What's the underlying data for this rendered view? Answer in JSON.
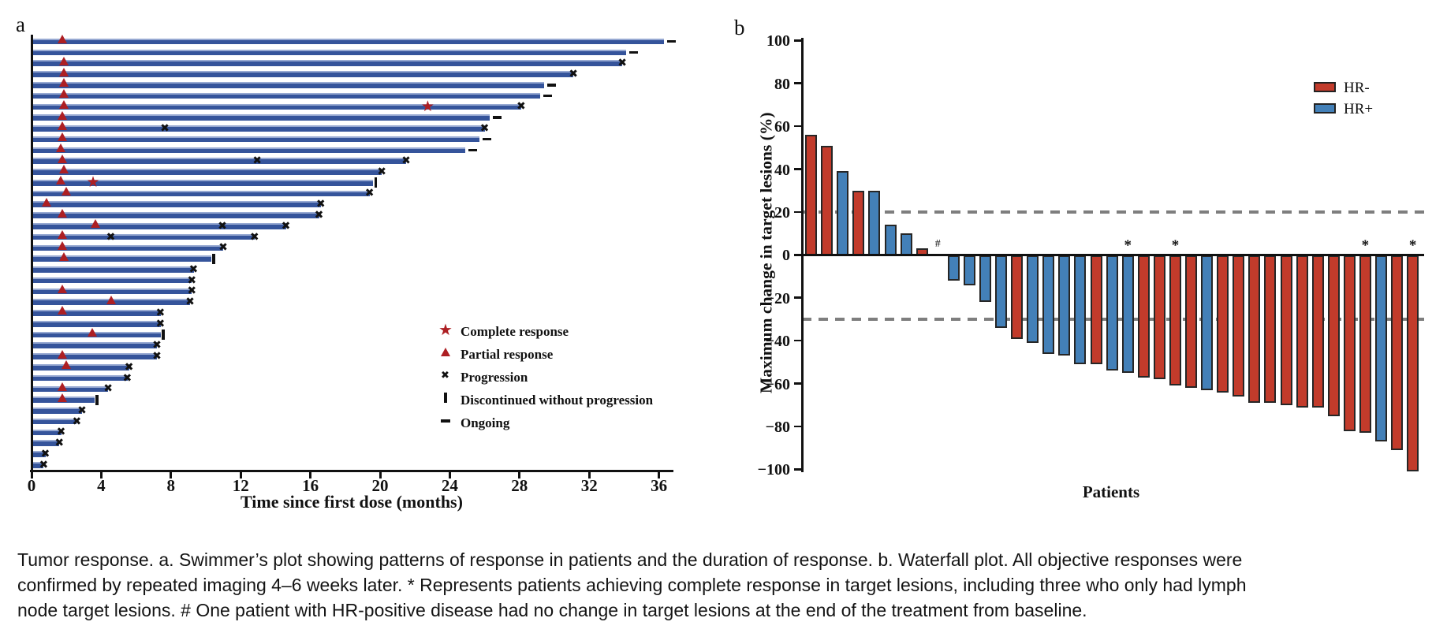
{
  "figure": {
    "panel_a_label": "a",
    "panel_b_label": "b"
  },
  "chart_data": [
    {
      "id": "swimmer",
      "type": "bar",
      "orientation": "horizontal",
      "xlabel": "Time since first dose (months)",
      "xlim": [
        0,
        37
      ],
      "xticks": [
        0,
        4,
        8,
        12,
        16,
        20,
        24,
        28,
        32,
        36
      ],
      "bar_color": "#35549B",
      "response_marker_color": "#AD1F23",
      "legend": [
        {
          "marker": "star",
          "label": "Complete response"
        },
        {
          "marker": "triangle",
          "label": "Partial response"
        },
        {
          "marker": "x",
          "label": "Progression"
        },
        {
          "marker": "bar",
          "label": "Discontinued without progression"
        },
        {
          "marker": "dash",
          "label": "Ongoing"
        }
      ],
      "patients": [
        {
          "duration": 36.3,
          "pr": 1.8,
          "end": "ongoing"
        },
        {
          "duration": 34.1,
          "end": "ongoing"
        },
        {
          "duration": 33.9,
          "pr": 1.9,
          "end": "progression"
        },
        {
          "duration": 31.1,
          "pr": 1.9,
          "end": "progression"
        },
        {
          "duration": 29.4,
          "pr": 1.9,
          "end": "ongoing"
        },
        {
          "duration": 29.2,
          "pr": 1.9,
          "end": "ongoing"
        },
        {
          "duration": 28.1,
          "pr": 1.9,
          "cr": 22.8,
          "end": "progression"
        },
        {
          "duration": 26.3,
          "pr": 1.8,
          "end": "ongoing"
        },
        {
          "duration": 26.0,
          "pr": 1.8,
          "prog_mid": 7.7,
          "end": "progression"
        },
        {
          "duration": 25.7,
          "pr": 1.8,
          "end": "ongoing"
        },
        {
          "duration": 24.9,
          "pr": 1.7,
          "end": "ongoing"
        },
        {
          "duration": 21.5,
          "pr": 1.8,
          "prog_mid": 13.0,
          "end": "progression"
        },
        {
          "duration": 20.1,
          "pr": 1.9,
          "end": "progression"
        },
        {
          "duration": 19.6,
          "pr": 1.7,
          "cr": 3.6,
          "end": "discontinued"
        },
        {
          "duration": 19.4,
          "pr": 2.0,
          "end": "progression"
        },
        {
          "duration": 16.6,
          "pr": 0.9,
          "end": "progression"
        },
        {
          "duration": 16.5,
          "pr": 1.8,
          "end": "progression"
        },
        {
          "duration": 14.6,
          "pr": 3.7,
          "prog_mid": 11.0,
          "end": "progression"
        },
        {
          "duration": 12.8,
          "pr": 1.8,
          "prog_mid": 4.6,
          "end": "progression"
        },
        {
          "duration": 11.0,
          "pr": 1.8,
          "end": "progression"
        },
        {
          "duration": 10.3,
          "pr": 1.9,
          "end": "discontinued"
        },
        {
          "duration": 9.3,
          "end": "progression"
        },
        {
          "duration": 9.2,
          "end": "progression"
        },
        {
          "duration": 9.2,
          "pr": 1.8,
          "end": "progression"
        },
        {
          "duration": 9.1,
          "pr": 4.6,
          "end": "progression"
        },
        {
          "duration": 7.4,
          "pr": 1.8,
          "end": "progression"
        },
        {
          "duration": 7.4,
          "end": "progression"
        },
        {
          "duration": 7.4,
          "pr": 3.5,
          "end": "discontinued"
        },
        {
          "duration": 7.2,
          "end": "progression"
        },
        {
          "duration": 7.2,
          "pr": 1.8,
          "end": "progression"
        },
        {
          "duration": 5.6,
          "pr": 2.0,
          "end": "progression"
        },
        {
          "duration": 5.5,
          "end": "progression"
        },
        {
          "duration": 4.4,
          "pr": 1.8,
          "end": "progression"
        },
        {
          "duration": 3.6,
          "pr": 1.8,
          "end": "discontinued"
        },
        {
          "duration": 2.9,
          "end": "progression"
        },
        {
          "duration": 2.6,
          "end": "progression"
        },
        {
          "duration": 1.7,
          "end": "progression"
        },
        {
          "duration": 1.6,
          "end": "progression"
        },
        {
          "duration": 0.8,
          "end": "progression"
        },
        {
          "duration": 0.7,
          "end": "progression"
        }
      ]
    },
    {
      "id": "waterfall",
      "type": "bar",
      "ylabel": "Maximum change in target lesions (%)",
      "xlabel": "Patients",
      "ylim": [
        -100,
        100
      ],
      "yticks": [
        100,
        80,
        60,
        40,
        20,
        0,
        -20,
        -40,
        -60,
        -80,
        -100
      ],
      "reference_lines": [
        20,
        -30
      ],
      "series_colors": {
        "HR-": "#C23B2B",
        "HR+": "#4380B8"
      },
      "legend": [
        {
          "label": "HR-",
          "color": "#C23B2B"
        },
        {
          "label": "HR+",
          "color": "#4380B8"
        }
      ],
      "bars": [
        {
          "value": 56,
          "group": "HR-"
        },
        {
          "value": 51,
          "group": "HR-"
        },
        {
          "value": 39,
          "group": "HR+"
        },
        {
          "value": 30,
          "group": "HR-"
        },
        {
          "value": 30,
          "group": "HR+"
        },
        {
          "value": 14,
          "group": "HR+"
        },
        {
          "value": 10,
          "group": "HR+"
        },
        {
          "value": 3,
          "group": "HR-"
        },
        {
          "value": 0,
          "group": "HR+",
          "note": "#"
        },
        {
          "value": -11,
          "group": "HR+"
        },
        {
          "value": -13,
          "group": "HR+"
        },
        {
          "value": -21,
          "group": "HR+"
        },
        {
          "value": -33,
          "group": "HR+"
        },
        {
          "value": -38,
          "group": "HR-"
        },
        {
          "value": -40,
          "group": "HR+"
        },
        {
          "value": -45,
          "group": "HR+"
        },
        {
          "value": -46,
          "group": "HR+"
        },
        {
          "value": -50,
          "group": "HR+"
        },
        {
          "value": -50,
          "group": "HR-"
        },
        {
          "value": -53,
          "group": "HR+"
        },
        {
          "value": -54,
          "group": "HR+",
          "note": "*"
        },
        {
          "value": -56,
          "group": "HR-"
        },
        {
          "value": -57,
          "group": "HR-"
        },
        {
          "value": -60,
          "group": "HR-",
          "note": "*"
        },
        {
          "value": -61,
          "group": "HR-"
        },
        {
          "value": -62,
          "group": "HR+"
        },
        {
          "value": -63,
          "group": "HR-"
        },
        {
          "value": -65,
          "group": "HR-"
        },
        {
          "value": -68,
          "group": "HR-"
        },
        {
          "value": -68,
          "group": "HR-"
        },
        {
          "value": -69,
          "group": "HR-"
        },
        {
          "value": -70,
          "group": "HR-"
        },
        {
          "value": -70,
          "group": "HR-"
        },
        {
          "value": -74,
          "group": "HR-"
        },
        {
          "value": -81,
          "group": "HR-"
        },
        {
          "value": -82,
          "group": "HR-",
          "note": "*"
        },
        {
          "value": -86,
          "group": "HR+"
        },
        {
          "value": -90,
          "group": "HR-"
        },
        {
          "value": -100,
          "group": "HR-",
          "note": "*"
        }
      ]
    }
  ],
  "caption": {
    "line1": "Tumor response. a. Swimmer’s plot showing patterns of response in patients and the duration of response. b. Waterfall plot. All objective responses were",
    "line2": "confirmed by repeated imaging 4–6 weeks later. * Represents patients achieving complete response in target lesions, including three who only had lymph",
    "line3": "node target lesions. # One patient with HR-positive disease had no change in target lesions at the end of the treatment from baseline."
  }
}
